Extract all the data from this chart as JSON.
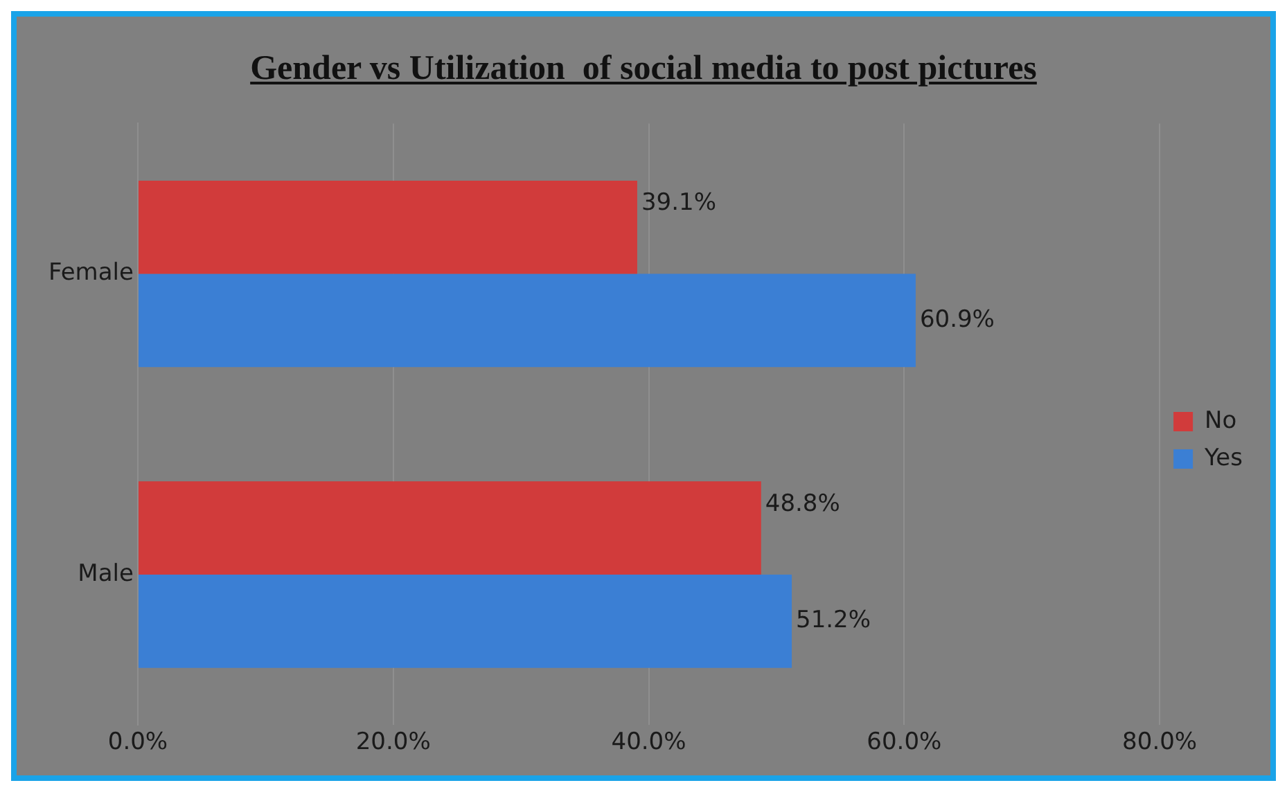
{
  "chart_data": {
    "type": "bar",
    "orientation": "horizontal",
    "title": "Gender vs Utilization  of social media to post pictures",
    "categories": [
      "Female",
      "Male"
    ],
    "series": [
      {
        "name": "No",
        "color": "#d13b3b",
        "values": [
          39.1,
          48.8
        ],
        "value_labels": [
          "39.1%",
          "48.8%"
        ]
      },
      {
        "name": "Yes",
        "color": "#3b7fd4",
        "values": [
          60.9,
          51.2
        ],
        "value_labels": [
          "60.9%",
          "51.2%"
        ]
      }
    ],
    "xlim": [
      0,
      80
    ],
    "xticks": [
      {
        "value": 0,
        "label": "0.0%"
      },
      {
        "value": 20,
        "label": "20.0%"
      },
      {
        "value": 40,
        "label": "40.0%"
      },
      {
        "value": 60,
        "label": "60.0%"
      },
      {
        "value": 80,
        "label": "80.0%"
      }
    ],
    "grid": "x",
    "legend": "right"
  }
}
